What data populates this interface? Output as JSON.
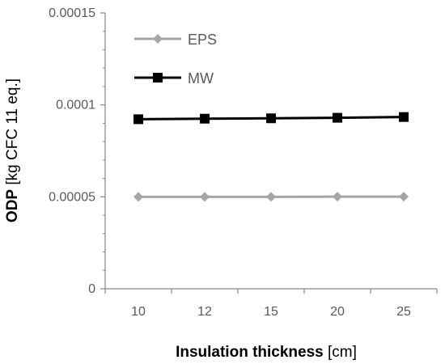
{
  "chart_data": {
    "type": "line",
    "categories": [
      "10",
      "12",
      "15",
      "20",
      "25"
    ],
    "series": [
      {
        "name": "EPS",
        "values": [
          5e-05,
          5e-05,
          5e-05,
          5.01e-05,
          5.01e-05
        ],
        "color": "#a5a5a5",
        "marker": "diamond"
      },
      {
        "name": "MW",
        "values": [
          9.22e-05,
          9.25e-05,
          9.27e-05,
          9.3e-05,
          9.34e-05
        ],
        "color": "#000000",
        "marker": "square"
      }
    ],
    "xlabel_bold": "Insulation thickness",
    "xlabel_unit": "[cm]",
    "ylabel_bold": "ODP",
    "ylabel_unit": "[kg CFC 11 eq.]",
    "ylim": [
      0,
      0.00015
    ],
    "y_ticks": [
      0,
      5e-05,
      0.0001,
      0.00015
    ],
    "y_tick_labels": [
      "0",
      "0.00005",
      "0.0001",
      "0.00015"
    ],
    "grid": false,
    "legend_position": "top-left"
  }
}
